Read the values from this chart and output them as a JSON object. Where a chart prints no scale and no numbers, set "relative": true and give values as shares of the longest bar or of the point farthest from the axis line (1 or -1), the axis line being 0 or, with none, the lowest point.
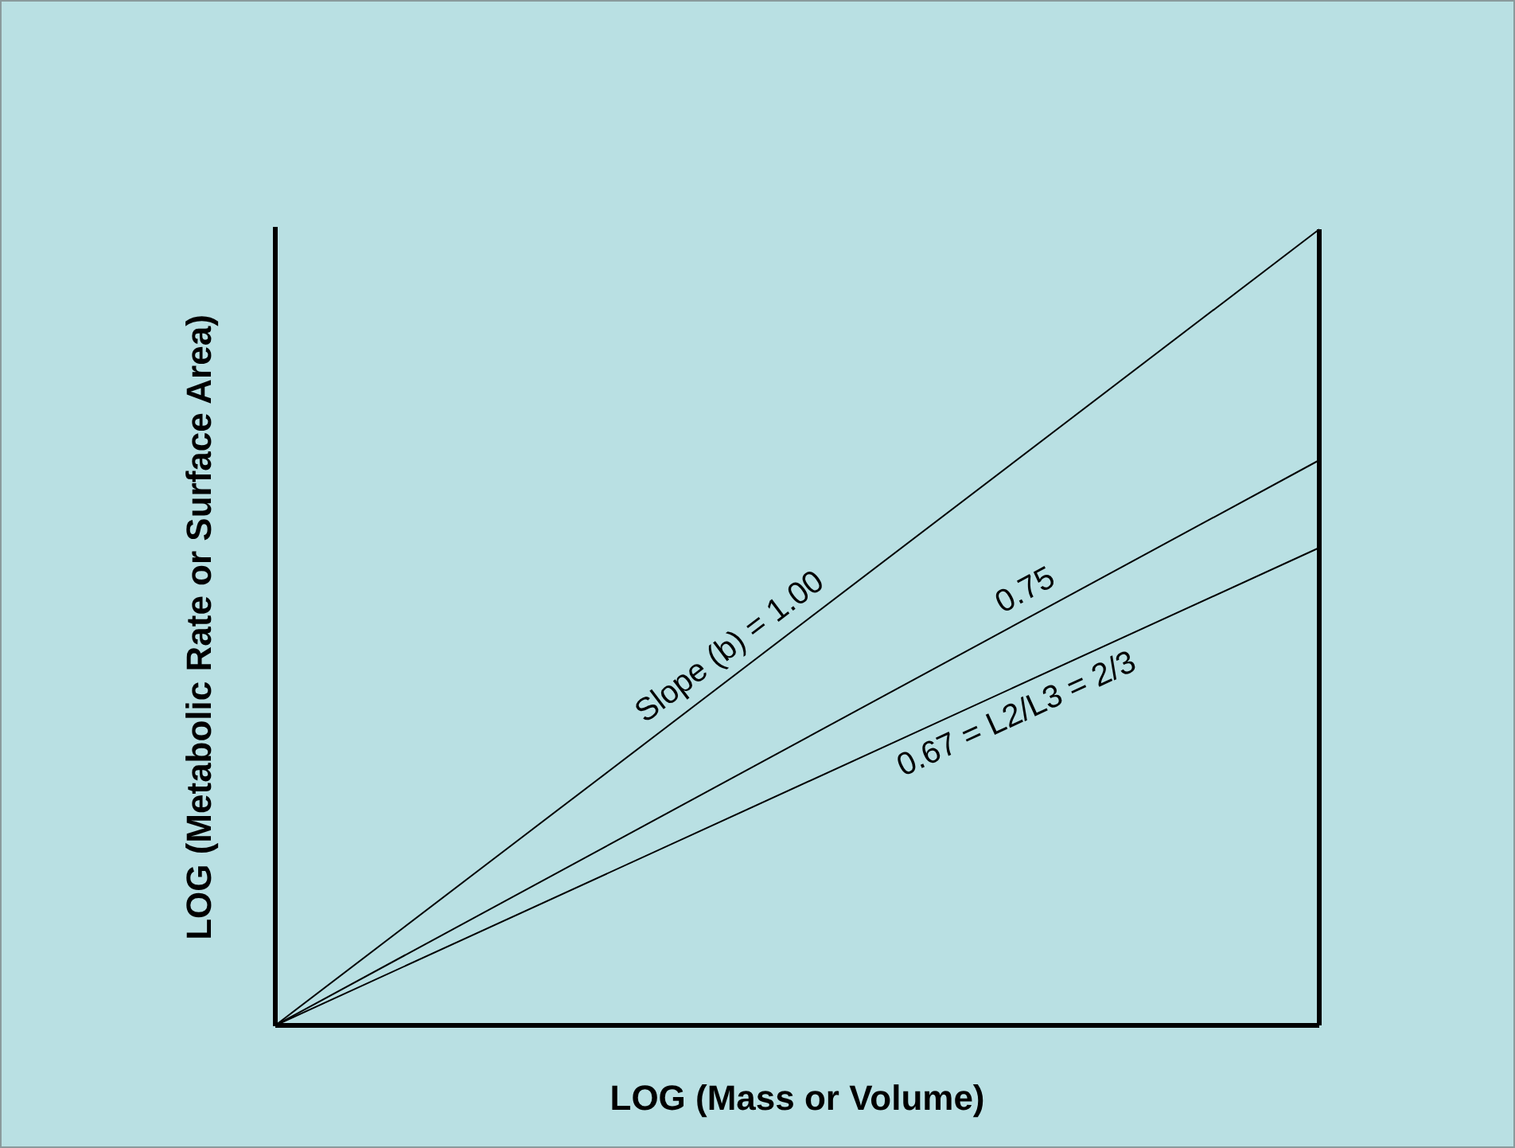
{
  "chart_data": {
    "type": "line",
    "relative": true,
    "xlabel": "LOG (Mass or Volume)",
    "ylabel": "LOG (Metabolic Rate or Surface Area)",
    "categories": [
      null,
      null
    ],
    "series": [
      {
        "color": "#000000",
        "values": [
          0,
          1
        ]
      },
      {
        "color": "#000000",
        "values": [
          0,
          0.71
        ]
      },
      {
        "color": "#000000",
        "values": [
          0,
          0.6
        ]
      }
    ],
    "annotations": [
      "Slope (b) = 1.00",
      "0.75",
      "0.67 = L2/L3 = 2/3"
    ],
    "ref_lines": [
      {
        "axis": "y",
        "value": 0,
        "color": "#000000"
      }
    ],
    "legend": false,
    "grid": false,
    "marker": "none"
  }
}
